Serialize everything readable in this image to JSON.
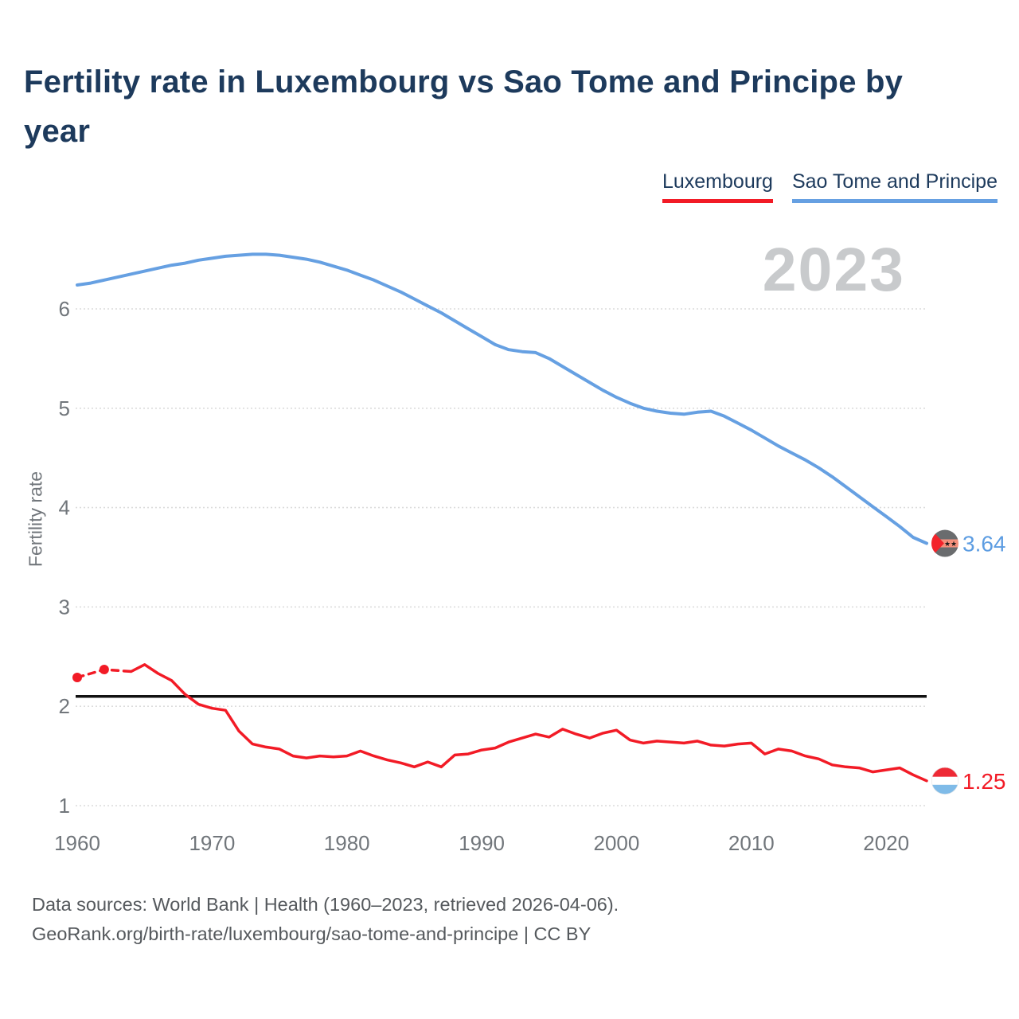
{
  "title": "Fertility rate in Luxembourg vs Sao Tome and Principe by year",
  "watermark": "2023",
  "legend": [
    {
      "label": "Luxembourg",
      "color": "#f21b26"
    },
    {
      "label": "Sao Tome and Principe",
      "color": "#66a0e2"
    }
  ],
  "y_axis": {
    "label": "Fertility rate",
    "ticks": [
      1,
      2,
      3,
      4,
      5,
      6
    ]
  },
  "x_axis": {
    "ticks": [
      1960,
      1970,
      1980,
      1990,
      2000,
      2010,
      2020
    ]
  },
  "end_labels": [
    {
      "series": "Sao Tome and Principe",
      "value": "3.64",
      "color": "#5d9de2",
      "flag": "sao-tome"
    },
    {
      "series": "Luxembourg",
      "value": "1.25",
      "color": "#f21b26",
      "flag": "luxembourg"
    }
  ],
  "footer": {
    "line1": "Data sources: World Bank | Health (1960–2023, retrieved 2026-04-06).",
    "line2": "GeoRank.org/birth-rate/luxembourg/sao-tome-and-principe | CC BY"
  },
  "flag_colors": {
    "luxembourg": {
      "top": "#ee2a35",
      "middle": "#ffffff",
      "bottom": "#7fbbe8"
    },
    "sao_tome": {
      "band": "#6a6c6e",
      "middle": "#f4907c",
      "triangle": "#f3242b",
      "star": "#1a1a1a"
    }
  },
  "chart_data": {
    "type": "line",
    "title": "Fertility rate in Luxembourg vs Sao Tome and Principe by year",
    "xlabel": "",
    "ylabel": "Fertility rate",
    "x_range": [
      1960,
      2023
    ],
    "ylim": [
      1,
      6.8
    ],
    "grid": true,
    "legend_position": "top-right",
    "current_year_label": "2023",
    "annotations": [
      {
        "type": "hline",
        "y": 2.1,
        "color": "#111111"
      }
    ],
    "x": [
      1960,
      1961,
      1962,
      1963,
      1964,
      1965,
      1966,
      1967,
      1968,
      1969,
      1970,
      1971,
      1972,
      1973,
      1974,
      1975,
      1976,
      1977,
      1978,
      1979,
      1980,
      1981,
      1982,
      1983,
      1984,
      1985,
      1986,
      1987,
      1988,
      1989,
      1990,
      1991,
      1992,
      1993,
      1994,
      1995,
      1996,
      1997,
      1998,
      1999,
      2000,
      2001,
      2002,
      2003,
      2004,
      2005,
      2006,
      2007,
      2008,
      2009,
      2010,
      2011,
      2012,
      2013,
      2014,
      2015,
      2016,
      2017,
      2018,
      2019,
      2020,
      2021,
      2022,
      2023
    ],
    "series": [
      {
        "name": "Sao Tome and Principe",
        "color": "#66a0e2",
        "end_value": 3.64,
        "values": [
          6.24,
          6.26,
          6.29,
          6.32,
          6.35,
          6.38,
          6.41,
          6.44,
          6.46,
          6.49,
          6.51,
          6.53,
          6.54,
          6.55,
          6.55,
          6.54,
          6.52,
          6.5,
          6.47,
          6.43,
          6.39,
          6.34,
          6.29,
          6.23,
          6.17,
          6.1,
          6.03,
          5.96,
          5.88,
          5.8,
          5.72,
          5.64,
          5.59,
          5.57,
          5.56,
          5.5,
          5.42,
          5.34,
          5.26,
          5.18,
          5.11,
          5.05,
          5.0,
          4.97,
          4.95,
          4.94,
          4.96,
          4.97,
          4.92,
          4.85,
          4.78,
          4.7,
          4.62,
          4.55,
          4.48,
          4.4,
          4.31,
          4.21,
          4.11,
          4.01,
          3.91,
          3.81,
          3.7,
          3.64
        ]
      },
      {
        "name": "Luxembourg",
        "color": "#f21b26",
        "end_value": 1.25,
        "dashed_until": 1964,
        "marker_years": [
          1960,
          1962
        ],
        "values": [
          2.29,
          null,
          2.37,
          null,
          2.35,
          2.42,
          2.33,
          2.26,
          2.12,
          2.02,
          1.98,
          1.96,
          1.75,
          1.62,
          1.59,
          1.57,
          1.5,
          1.48,
          1.5,
          1.49,
          1.5,
          1.55,
          1.5,
          1.46,
          1.43,
          1.39,
          1.44,
          1.39,
          1.51,
          1.52,
          1.56,
          1.58,
          1.64,
          1.68,
          1.72,
          1.69,
          1.77,
          1.72,
          1.68,
          1.73,
          1.76,
          1.66,
          1.63,
          1.65,
          1.64,
          1.63,
          1.65,
          1.61,
          1.6,
          1.62,
          1.63,
          1.52,
          1.57,
          1.55,
          1.5,
          1.47,
          1.41,
          1.39,
          1.38,
          1.34,
          1.36,
          1.38,
          1.31,
          1.25
        ]
      }
    ]
  }
}
